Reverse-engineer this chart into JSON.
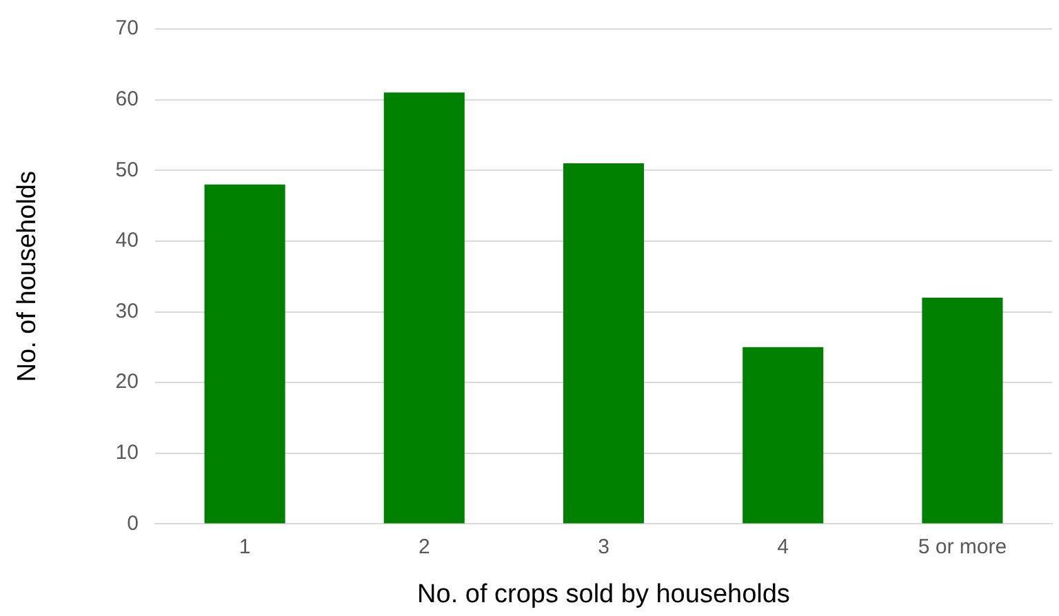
{
  "chart_data": {
    "type": "bar",
    "xlabel": "No. of crops sold by households",
    "ylabel": "No. of households",
    "categories": [
      "1",
      "2",
      "3",
      "4",
      "5 or more"
    ],
    "values": [
      48,
      61,
      51,
      25,
      32
    ],
    "color": "#008000",
    "ylim": [
      0,
      70
    ],
    "yticks": [
      0,
      10,
      20,
      30,
      40,
      50,
      60,
      70
    ],
    "grid": "y",
    "legend": false
  }
}
